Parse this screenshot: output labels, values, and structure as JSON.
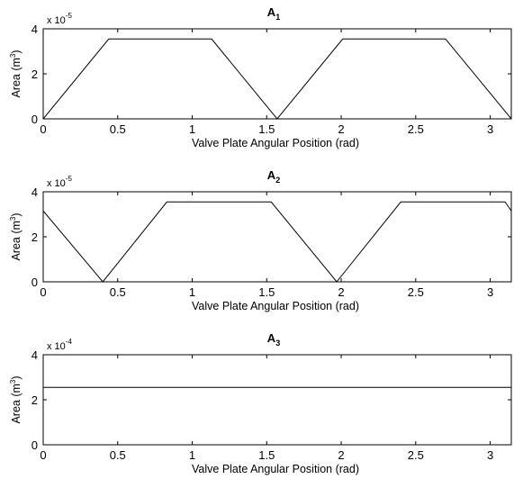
{
  "chart_data": [
    {
      "type": "line",
      "title": "A",
      "title_subscript": "1",
      "xlabel": "Valve Plate Angular Position (rad)",
      "ylabel": "Area (m",
      "ylabel_sup": "3",
      "ylabel_close": ")",
      "y_exponent_base": "x 10",
      "y_exponent": "-5",
      "xlim": [
        0,
        3.1416
      ],
      "ylim": [
        0,
        4
      ],
      "xticks": [
        "0",
        "0.5",
        "1",
        "1.5",
        "2",
        "2.5",
        "3"
      ],
      "yticks": [
        "0",
        "2",
        "4"
      ],
      "grid": false,
      "series": [
        {
          "color": "#000000",
          "x": [
            0,
            0.44,
            1.13,
            1.57,
            2.01,
            2.7,
            3.1416
          ],
          "y": [
            0,
            3.55,
            3.55,
            0,
            3.55,
            3.55,
            0
          ]
        }
      ]
    },
    {
      "type": "line",
      "title": "A",
      "title_subscript": "2",
      "xlabel": "Valve Plate Angular Position (rad)",
      "ylabel": "Area (m",
      "ylabel_sup": "3",
      "ylabel_close": ")",
      "y_exponent_base": "x 10",
      "y_exponent": "-5",
      "xlim": [
        0,
        3.1416
      ],
      "ylim": [
        0,
        4
      ],
      "xticks": [
        "0",
        "0.5",
        "1",
        "1.5",
        "2",
        "2.5",
        "3"
      ],
      "yticks": [
        "0",
        "2",
        "4"
      ],
      "grid": false,
      "series": [
        {
          "color": "#000000",
          "x": [
            0,
            0.4,
            0.83,
            1.53,
            1.97,
            2.4,
            3.1,
            3.1416,
            3.1416
          ],
          "y": [
            3.15,
            0,
            3.55,
            3.55,
            0,
            3.55,
            3.55,
            3.15,
            1.6
          ]
        }
      ]
    },
    {
      "type": "line",
      "title": "A",
      "title_subscript": "3",
      "xlabel": "Valve Plate Angular Position (rad)",
      "ylabel": "Area (m",
      "ylabel_sup": "3",
      "ylabel_close": ")",
      "y_exponent_base": "x 10",
      "y_exponent": "-4",
      "xlim": [
        0,
        3.1416
      ],
      "ylim": [
        0,
        4
      ],
      "xticks": [
        "0",
        "0.5",
        "1",
        "1.5",
        "2",
        "2.5",
        "3"
      ],
      "yticks": [
        "0",
        "2",
        "4"
      ],
      "grid": false,
      "series": [
        {
          "color": "#000000",
          "x": [
            0,
            3.1416
          ],
          "y": [
            2.55,
            2.55
          ]
        }
      ]
    }
  ]
}
